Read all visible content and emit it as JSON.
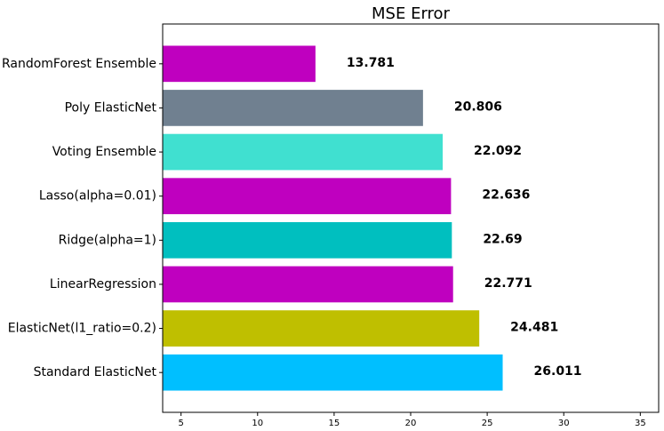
{
  "chart_data": {
    "type": "bar",
    "orientation": "horizontal",
    "title": "MSE Error",
    "xlabel": "",
    "ylabel": "",
    "xlim": [
      3.8,
      36.2
    ],
    "xticks": [
      5,
      10,
      15,
      20,
      25,
      30,
      35
    ],
    "xtick_labels": [
      "5",
      "10",
      "15",
      "20",
      "25",
      "30",
      "35"
    ],
    "grid": false,
    "legend": "none",
    "categories": [
      "RandomForest Ensemble",
      "Poly ElasticNet",
      "Voting Ensemble",
      "Lasso(alpha=0.01)",
      "Ridge(alpha=1)",
      "LinearRegression",
      "ElasticNet(l1_ratio=0.2)",
      "Standard ElasticNet"
    ],
    "values": [
      13.781,
      20.806,
      22.092,
      22.636,
      22.69,
      22.771,
      24.481,
      26.011
    ],
    "value_labels": [
      "13.781",
      "20.806",
      "22.092",
      "22.636",
      "22.69",
      "22.771",
      "24.481",
      "26.011"
    ],
    "colors": [
      "#bf00bf",
      "#708090",
      "#40e0d0",
      "#bf00bf",
      "#00bfbf",
      "#bf00bf",
      "#bfbf00",
      "#00bfff"
    ]
  }
}
